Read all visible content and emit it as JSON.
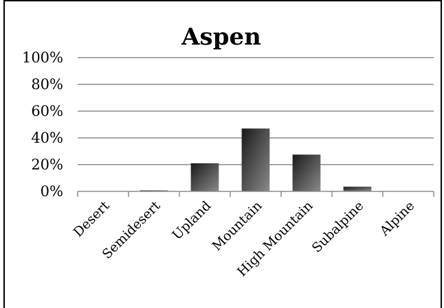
{
  "chart_data": {
    "type": "bar",
    "title": "Aspen",
    "xlabel": "",
    "ylabel": "",
    "categories": [
      "Desert",
      "Semidesert",
      "Upland",
      "Mountain",
      "High Mountain",
      "Subalpine",
      "Alpine"
    ],
    "values": [
      0,
      0.005,
      0.21,
      0.47,
      0.275,
      0.035,
      0
    ],
    "ylim": [
      0,
      1
    ],
    "yticks": [
      "0%",
      "20%",
      "40%",
      "60%",
      "80%",
      "100%"
    ],
    "grid": true,
    "legend": "none",
    "colors": {
      "bar_dark": "#1a1a1a",
      "bar_light": "#8a8a8a",
      "grid": "#8c8c8c",
      "axis": "#8c8c8c",
      "frame": "#000000"
    }
  }
}
